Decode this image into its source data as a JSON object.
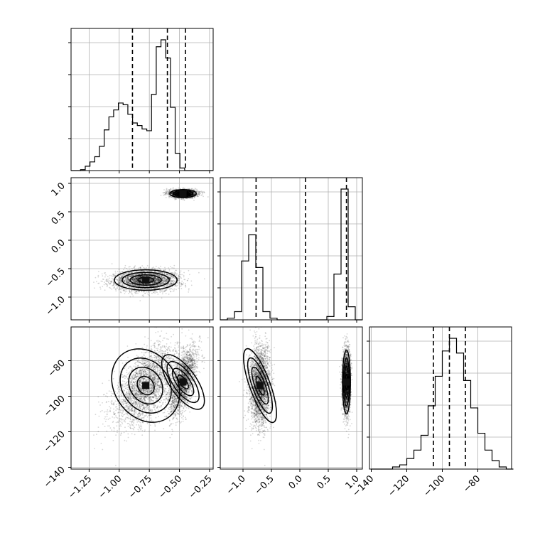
{
  "chart_data": {
    "type": "corner",
    "params": [
      {
        "lim": [
          -1.4,
          -0.22
        ],
        "ticks": [
          -1.25,
          -1.0,
          -0.75,
          -0.5,
          -0.25
        ],
        "tick_labels": [
          "−1.25",
          "−1.00",
          "−0.75",
          "−0.50",
          "−0.25"
        ]
      },
      {
        "lim": [
          -1.4,
          1.1
        ],
        "ticks": [
          -1.0,
          -0.5,
          0.0,
          0.5,
          1.0
        ],
        "tick_labels": [
          "−1.0",
          "−0.5",
          "0.0",
          "0.5",
          "1.0"
        ]
      },
      {
        "lim": [
          -141,
          -61
        ],
        "ticks": [
          -140,
          -120,
          -100,
          -80
        ],
        "tick_labels": [
          "−140",
          "−120",
          "−100",
          "−80"
        ]
      }
    ],
    "histograms": [
      {
        "edges_start": -1.4,
        "bin_width": 0.0393,
        "counts": [
          0,
          0,
          1,
          5,
          10,
          16,
          28,
          47,
          62,
          70,
          78,
          76,
          65,
          55,
          52,
          48,
          46,
          88,
          143,
          151,
          130,
          73,
          20,
          3,
          0,
          0,
          0,
          0,
          0,
          0
        ],
        "quantiles": [
          -0.89,
          -0.6,
          -0.45
        ]
      },
      {
        "edges_start": -1.4,
        "bin_width": 0.125,
        "counts": [
          0,
          1,
          5,
          36,
          52,
          32,
          5,
          1,
          0,
          0,
          0,
          0,
          0,
          0,
          0,
          2,
          28,
          80,
          8,
          0
        ],
        "quantiles": [
          -0.77,
          0.1,
          0.82
        ]
      },
      {
        "edges_start": -140,
        "bin_width": 4.0,
        "counts": [
          0,
          0,
          0,
          1,
          2,
          5,
          9,
          16,
          30,
          44,
          56,
          62,
          55,
          42,
          29,
          17,
          9,
          4,
          1,
          0
        ],
        "quantiles": [
          -105,
          -96,
          -87
        ]
      }
    ],
    "scatter_modes": [
      {
        "mean": [
          -0.78,
          -0.7,
          -94
        ],
        "sd": [
          0.13,
          0.09,
          11
        ],
        "weight": 0.55
      },
      {
        "mean": [
          -0.47,
          0.82,
          -92
        ],
        "sd": [
          0.055,
          0.035,
          9
        ],
        "weight": 0.45
      }
    ]
  }
}
